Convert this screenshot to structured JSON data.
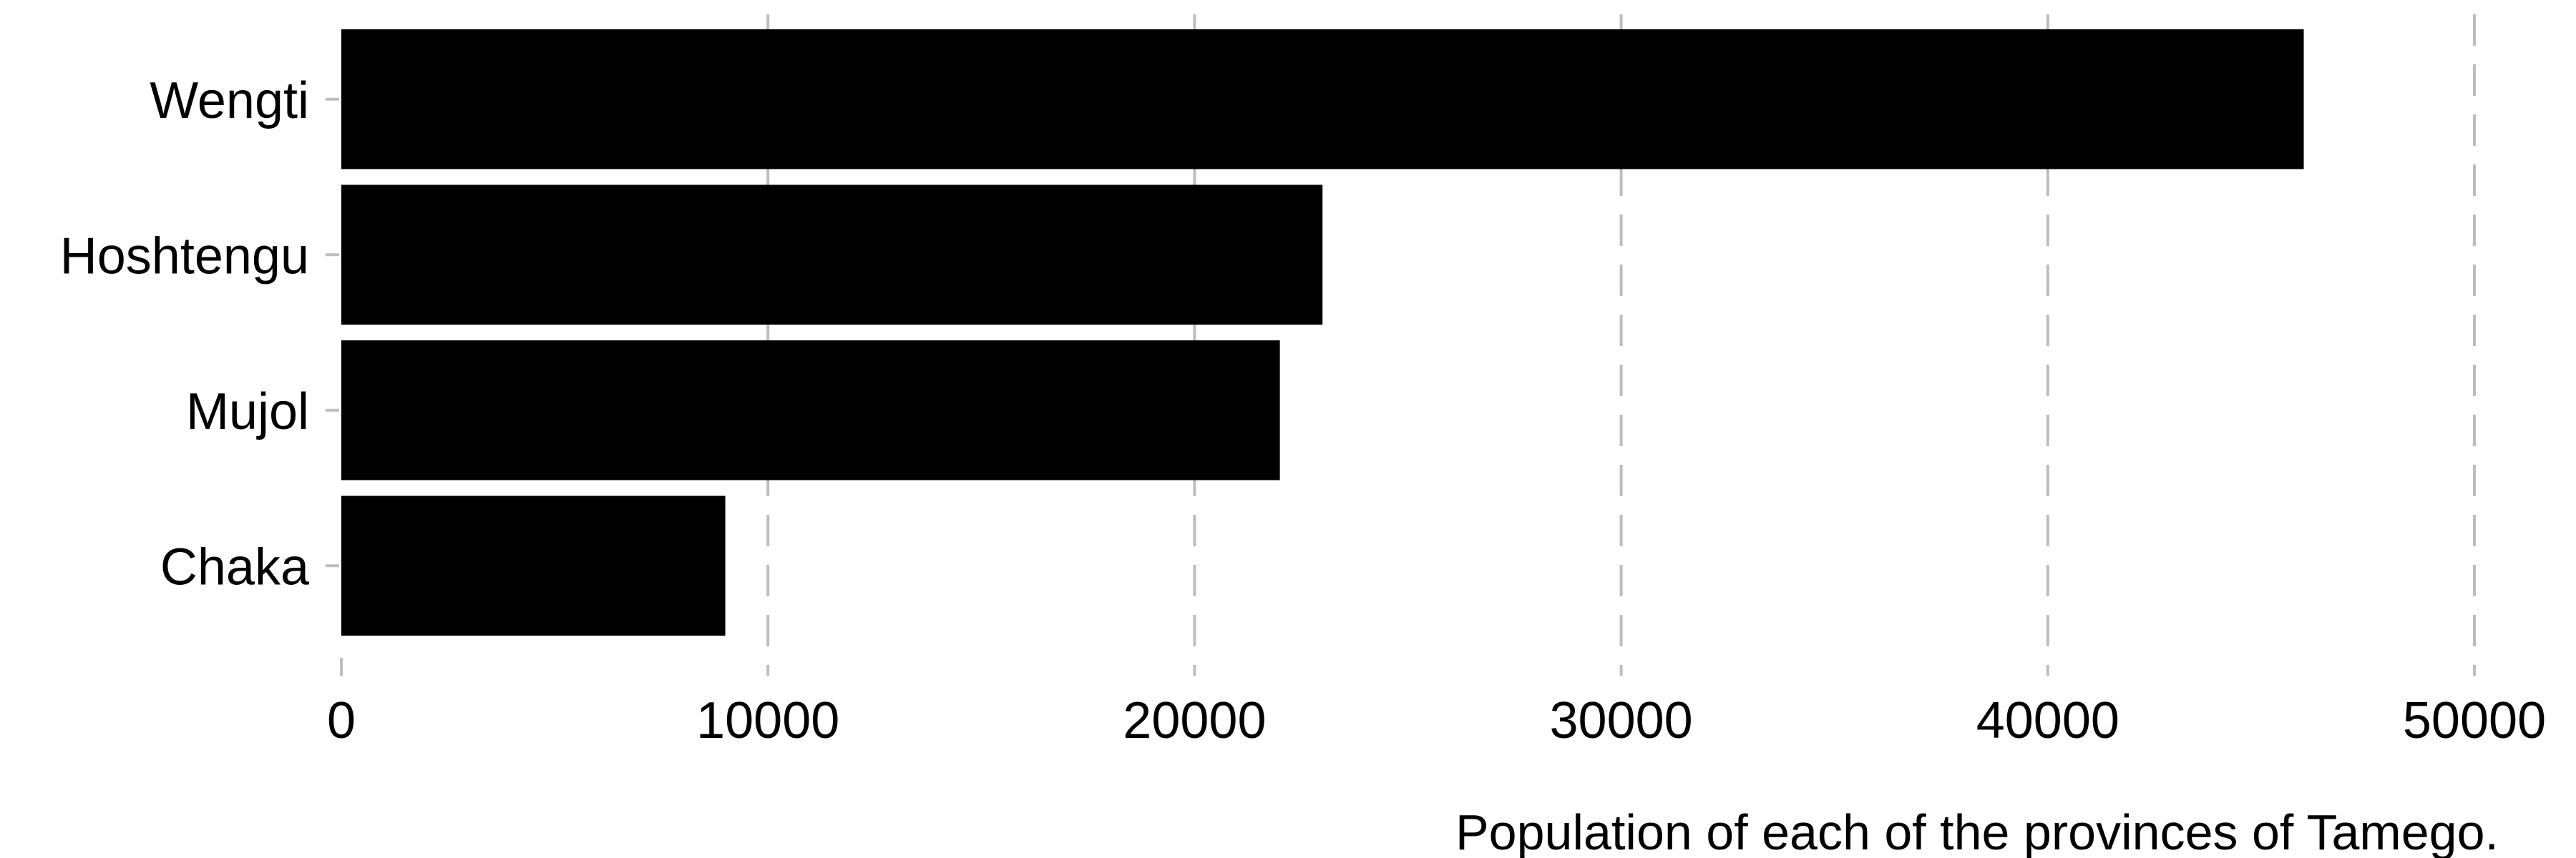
{
  "chart_data": {
    "type": "bar",
    "orientation": "horizontal",
    "categories": [
      "Wengti",
      "Hoshtengu",
      "Mujol",
      "Chaka"
    ],
    "values": [
      46000,
      23000,
      22000,
      9000
    ],
    "xlabel": "Population of each of the provinces of Tamego.",
    "ylabel": "",
    "xlim": [
      0,
      50000
    ],
    "xticks": [
      "0",
      "10000",
      "20000",
      "30000",
      "40000",
      "50000"
    ],
    "grid": "vertical dashed",
    "bar_color": "#000000",
    "grid_color": "#bdbdbd"
  }
}
